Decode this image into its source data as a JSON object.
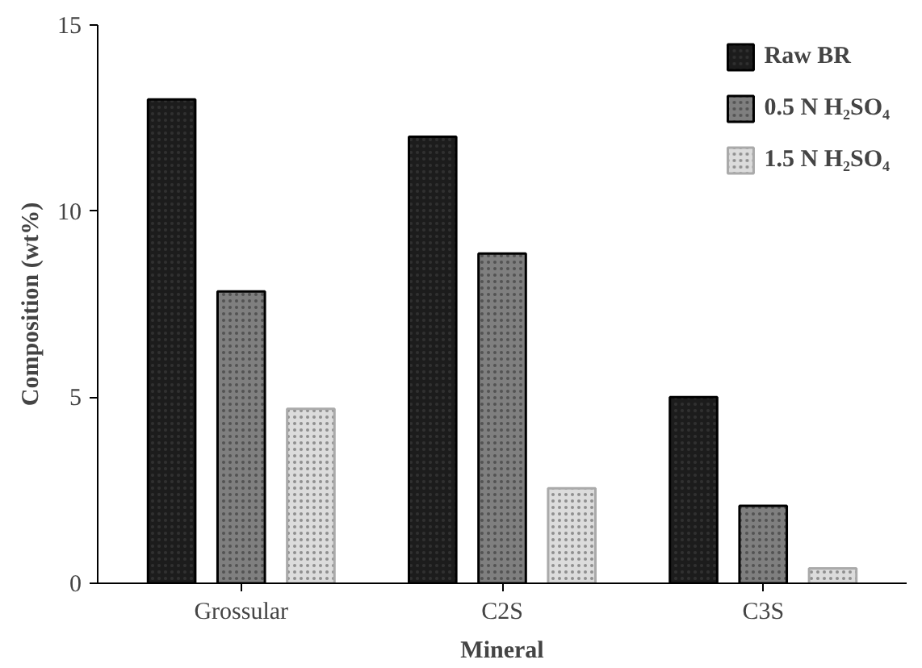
{
  "chart_data": {
    "type": "bar",
    "xlabel": "Mineral",
    "ylabel": "Composition (wt%)",
    "categories": [
      "Grossular",
      "C2S",
      "C3S"
    ],
    "series": [
      {
        "name": "Raw BR",
        "color": "#1c1c1c",
        "values": [
          13.0,
          12.0,
          5.0
        ]
      },
      {
        "name": "0.5 N H₂SO₄",
        "color": "#7f7f7f",
        "values": [
          7.84,
          8.86,
          2.08
        ]
      },
      {
        "name": "1.5 N H₂SO₄",
        "color": "#dcdcdc",
        "values": [
          4.69,
          2.55,
          0.4
        ]
      }
    ],
    "ylim": [
      0,
      15
    ],
    "yticks": [
      0,
      5,
      10,
      15
    ],
    "grid": false,
    "legend": "top right"
  }
}
